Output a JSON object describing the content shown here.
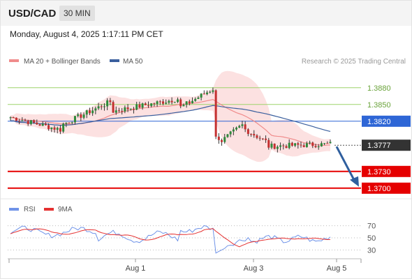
{
  "header": {
    "symbol": "USD/CAD",
    "timeframe": "30 MIN",
    "datetime": "Monday, August 4, 2025 1:17:11 PM CET"
  },
  "legend": {
    "ma20_label": "MA 20 + Bollinger Bands",
    "ma50_label": "MA 50",
    "copyright": "Research © 2025 Trading Central",
    "rsi_label": "RSI",
    "rsi9ma_label": "9MA"
  },
  "colors": {
    "ma20": "#f08c8c",
    "ma50": "#3a5f9e",
    "band_fill": "#fbdcdc",
    "resistance_green": "#9ed36a",
    "pivot_blue": "#2e66d6",
    "support_red": "#e50000",
    "current_price_box": "#333333",
    "rsi_line": "#6f93e8",
    "rsi_ma_line": "#e53030",
    "arrow": "#2f5f9e"
  },
  "chart_data": [
    {
      "type": "candlestick",
      "title": "",
      "xlabel": "",
      "ylabel": "",
      "ylim": [
        1.3686,
        1.3911
      ],
      "x_ticks": [
        "Aug 1",
        "Aug 3",
        "Aug 5"
      ],
      "levels": [
        {
          "value": 1.388,
          "label": "1.3880",
          "kind": "resistance"
        },
        {
          "value": 1.385,
          "label": "1.3850",
          "kind": "resistance"
        },
        {
          "value": 1.382,
          "label": "1.3820",
          "kind": "pivot"
        },
        {
          "value": 1.3777,
          "label": "1.3777",
          "kind": "current"
        },
        {
          "value": 1.373,
          "label": "1.3730",
          "kind": "support"
        },
        {
          "value": 1.37,
          "label": "1.3700",
          "kind": "support"
        }
      ],
      "series": [
        {
          "name": "MA 20 + Bollinger Bands"
        },
        {
          "name": "MA 50"
        }
      ],
      "forecast_arrow": {
        "from": 1.3777,
        "to": 1.37
      }
    },
    {
      "type": "line",
      "title": "",
      "ylim": [
        20,
        80
      ],
      "y_ticks": [
        70,
        50,
        30
      ],
      "series": [
        {
          "name": "RSI"
        },
        {
          "name": "9MA"
        }
      ]
    }
  ]
}
